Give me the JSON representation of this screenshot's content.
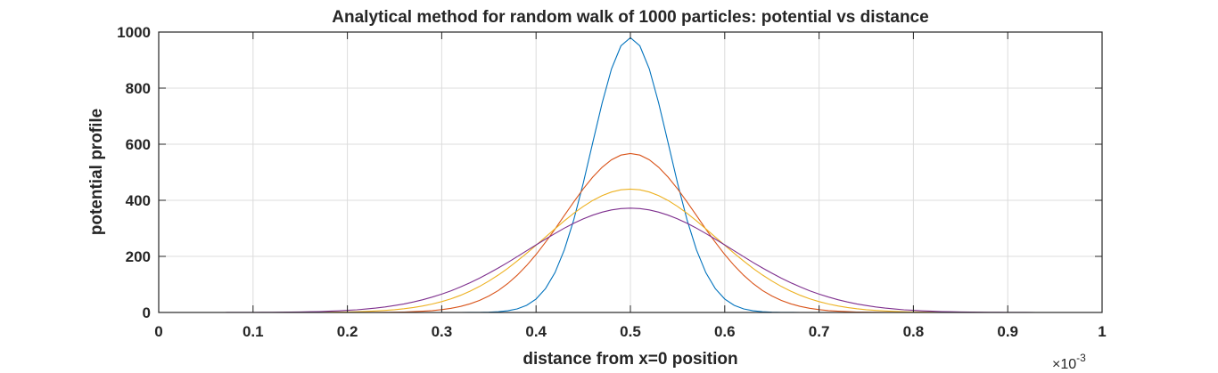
{
  "chart_data": {
    "type": "line",
    "title": "Analytical method for random walk of 1000 particles: potential vs distance",
    "xlabel": "distance from x=0 position",
    "ylabel": "potential profile",
    "x_multiplier_label": "×10",
    "x_multiplier_exponent": "-3",
    "xlim": [
      0,
      1
    ],
    "ylim": [
      0,
      1000
    ],
    "xticks": [
      "0",
      "0.1",
      "0.2",
      "0.3",
      "0.4",
      "0.5",
      "0.6",
      "0.7",
      "0.8",
      "0.9",
      "1"
    ],
    "yticks": [
      "0",
      "200",
      "400",
      "600",
      "800",
      "1000"
    ],
    "grid": true,
    "x_units_note": "x values in units of 1e-3",
    "series": [
      {
        "color": "#0072BD",
        "peak_x": 0.5,
        "peak_y": 980,
        "sigma": 0.0407
      },
      {
        "color": "#D95319",
        "peak_x": 0.5,
        "peak_y": 567,
        "sigma": 0.0704
      },
      {
        "color": "#EDB120",
        "peak_x": 0.5,
        "peak_y": 440,
        "sigma": 0.0907
      },
      {
        "color": "#7E2F8E",
        "peak_x": 0.5,
        "peak_y": 372,
        "sigma": 0.1073
      }
    ]
  }
}
